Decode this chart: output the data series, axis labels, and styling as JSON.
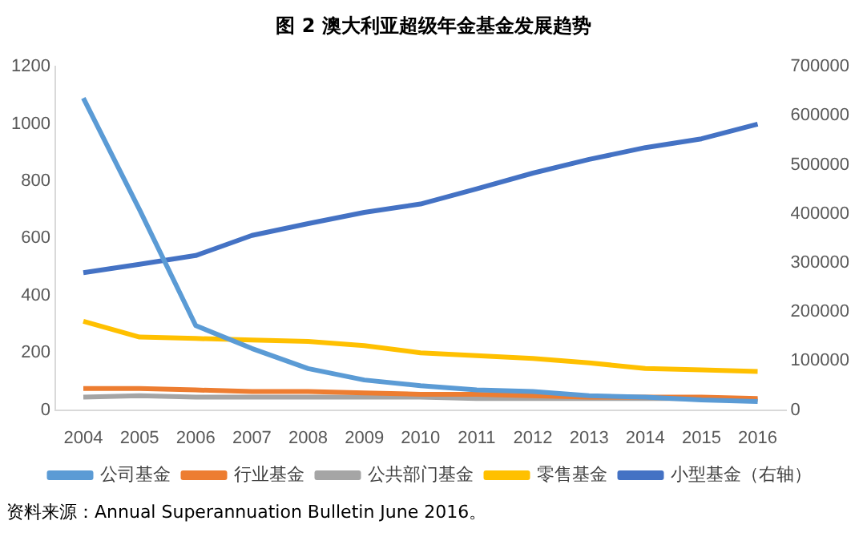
{
  "chart_data": {
    "type": "line",
    "title": "图  2 澳大利亚超级年金基金发展趋势",
    "categories": [
      "2004",
      "2005",
      "2006",
      "2007",
      "2008",
      "2009",
      "2010",
      "2011",
      "2012",
      "2013",
      "2014",
      "2015",
      "2016"
    ],
    "series": [
      {
        "name": "公司基金",
        "color": "#5b9bd5",
        "values": [
          1090,
          700,
          295,
          215,
          145,
          105,
          85,
          70,
          65,
          50,
          45,
          35,
          30
        ]
      },
      {
        "name": "行业基金",
        "color": "#ed7d31",
        "values": [
          75,
          75,
          70,
          65,
          65,
          60,
          55,
          55,
          50,
          45,
          45,
          45,
          40
        ]
      },
      {
        "name": "公共部门基金",
        "color": "#a5a5a5",
        "values": [
          45,
          50,
          45,
          45,
          45,
          45,
          45,
          40,
          40,
          40,
          40,
          40,
          35
        ]
      },
      {
        "name": "零售基金",
        "color": "#ffc000",
        "values": [
          310,
          255,
          250,
          245,
          240,
          225,
          200,
          190,
          180,
          165,
          145,
          140,
          135
        ]
      },
      {
        "name": "小型基金（右轴）",
        "color": "#4472c4",
        "axis": "y2",
        "values": [
          280000,
          297000,
          315000,
          356000,
          380000,
          403000,
          420000,
          451000,
          483000,
          511000,
          535000,
          553000,
          583000
        ]
      }
    ],
    "ylim": [
      0,
      1200
    ],
    "yticks": [
      0,
      200,
      400,
      600,
      800,
      1000,
      1200
    ],
    "y2lim": [
      0,
      700000
    ],
    "y2ticks": [
      0,
      100000,
      200000,
      300000,
      400000,
      500000,
      600000,
      700000
    ],
    "grid": false,
    "legend": "bottom",
    "marker": "none",
    "line_style": "solid",
    "annotations": [
      "资料来源：Annual Superannuation Bulletin June 2016。"
    ]
  }
}
